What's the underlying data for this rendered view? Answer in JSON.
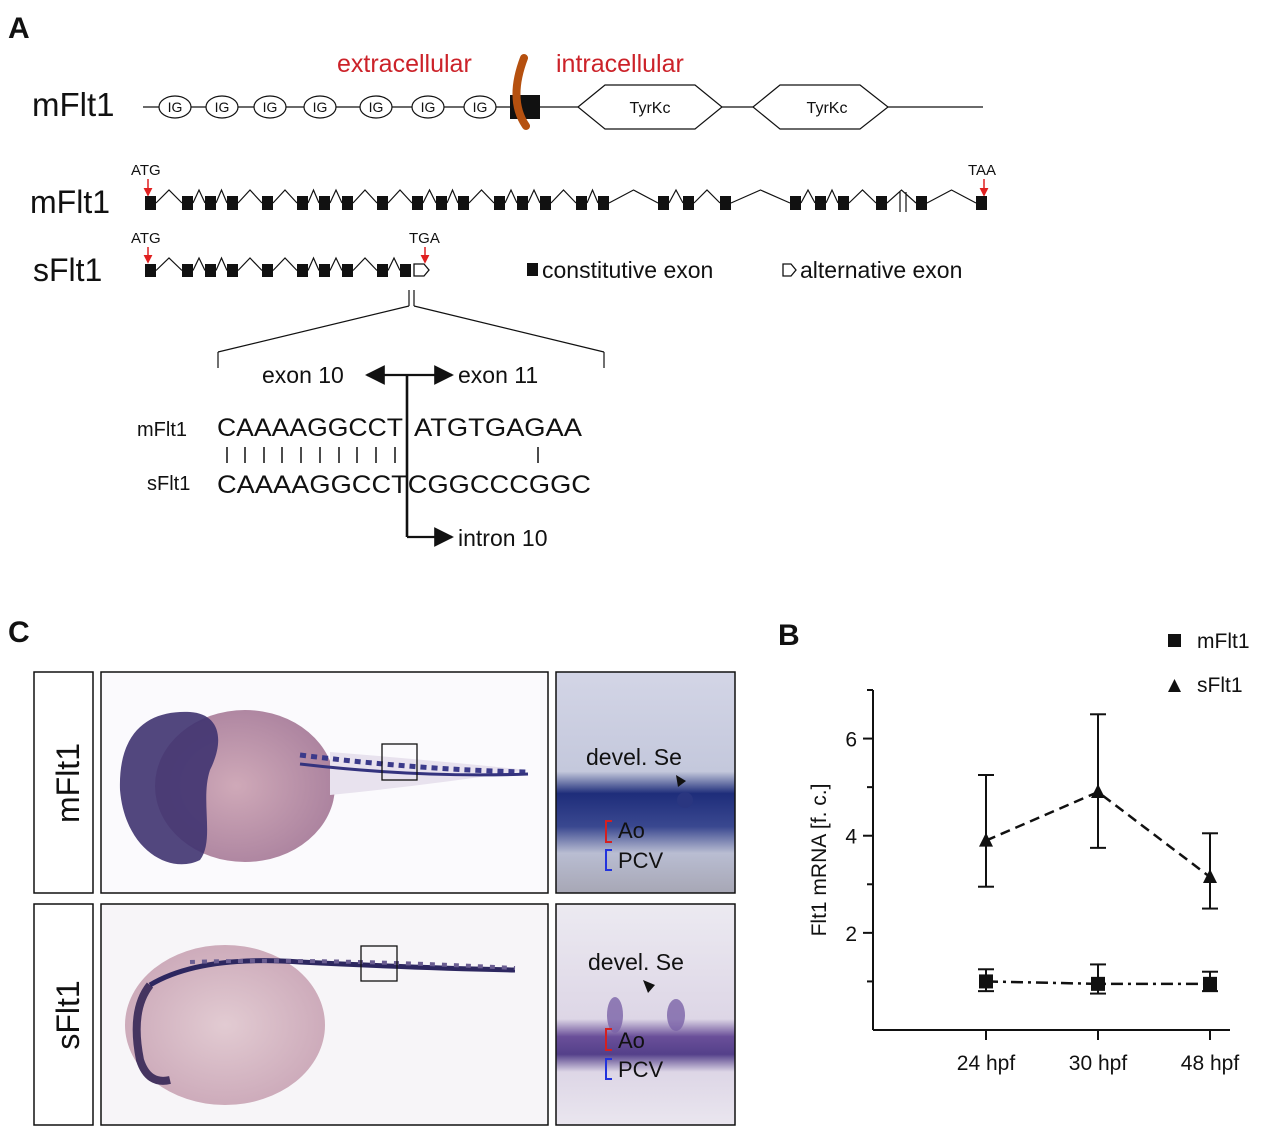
{
  "panel_labels": {
    "a": "A",
    "b": "B",
    "c": "C"
  },
  "panel_a": {
    "domain_title": "mFlt1",
    "extracellular": "extracellular",
    "intracellular": "intracellular",
    "ig_label": "IG",
    "tyrkc_label": "TyrKc",
    "gene_m": "mFlt1",
    "gene_s": "sFlt1",
    "atg": "ATG",
    "taa": "TAA",
    "tga": "TGA",
    "legend_constitutive": "constitutive exon",
    "legend_alternative": "alternative exon",
    "exon10": "exon 10",
    "exon11": "exon 11",
    "intron10": "intron 10",
    "seq_m_label": "mFlt1",
    "seq_s_label": "sFlt1",
    "seq_m_left": "CAAAAGGCCT",
    "seq_m_right": "ATGTGAGAA",
    "seq_s": "CAAAAGGCCTCGGCCCGGC",
    "colors": {
      "membrane": "#b5500f",
      "red_text": "#cc2229",
      "arrow_red": "#e02020"
    }
  },
  "panel_c": {
    "row1_label": "mFlt1",
    "row2_label": "sFlt1",
    "devel_se": "devel. Se",
    "ao": "Ao",
    "pcv": "PCV",
    "colors": {
      "stain": "#2a2a80",
      "ao_bracket": "#d42020",
      "pcv_bracket": "#2233dd"
    }
  },
  "chart_data": {
    "type": "line",
    "categories": [
      "24 hpf",
      "30 hpf",
      "48 hpf"
    ],
    "ylabel": "Flt1 mRNA [f. c.]",
    "xlabel": "",
    "ylim": [
      0,
      7
    ],
    "yticks": [
      2,
      4,
      6
    ],
    "grid": false,
    "legend_position": "top-right",
    "series": [
      {
        "name": "mFlt1",
        "marker": "square",
        "line": "dash-dot",
        "values": [
          1.0,
          0.95,
          0.95
        ],
        "error_low": [
          0.8,
          0.75,
          0.8
        ],
        "error_high": [
          1.25,
          1.35,
          1.2
        ]
      },
      {
        "name": "sFlt1",
        "marker": "triangle",
        "line": "dashed",
        "values": [
          3.9,
          4.9,
          3.15
        ],
        "error_low": [
          2.95,
          3.75,
          2.5
        ],
        "error_high": [
          5.25,
          6.5,
          4.05
        ]
      }
    ]
  }
}
